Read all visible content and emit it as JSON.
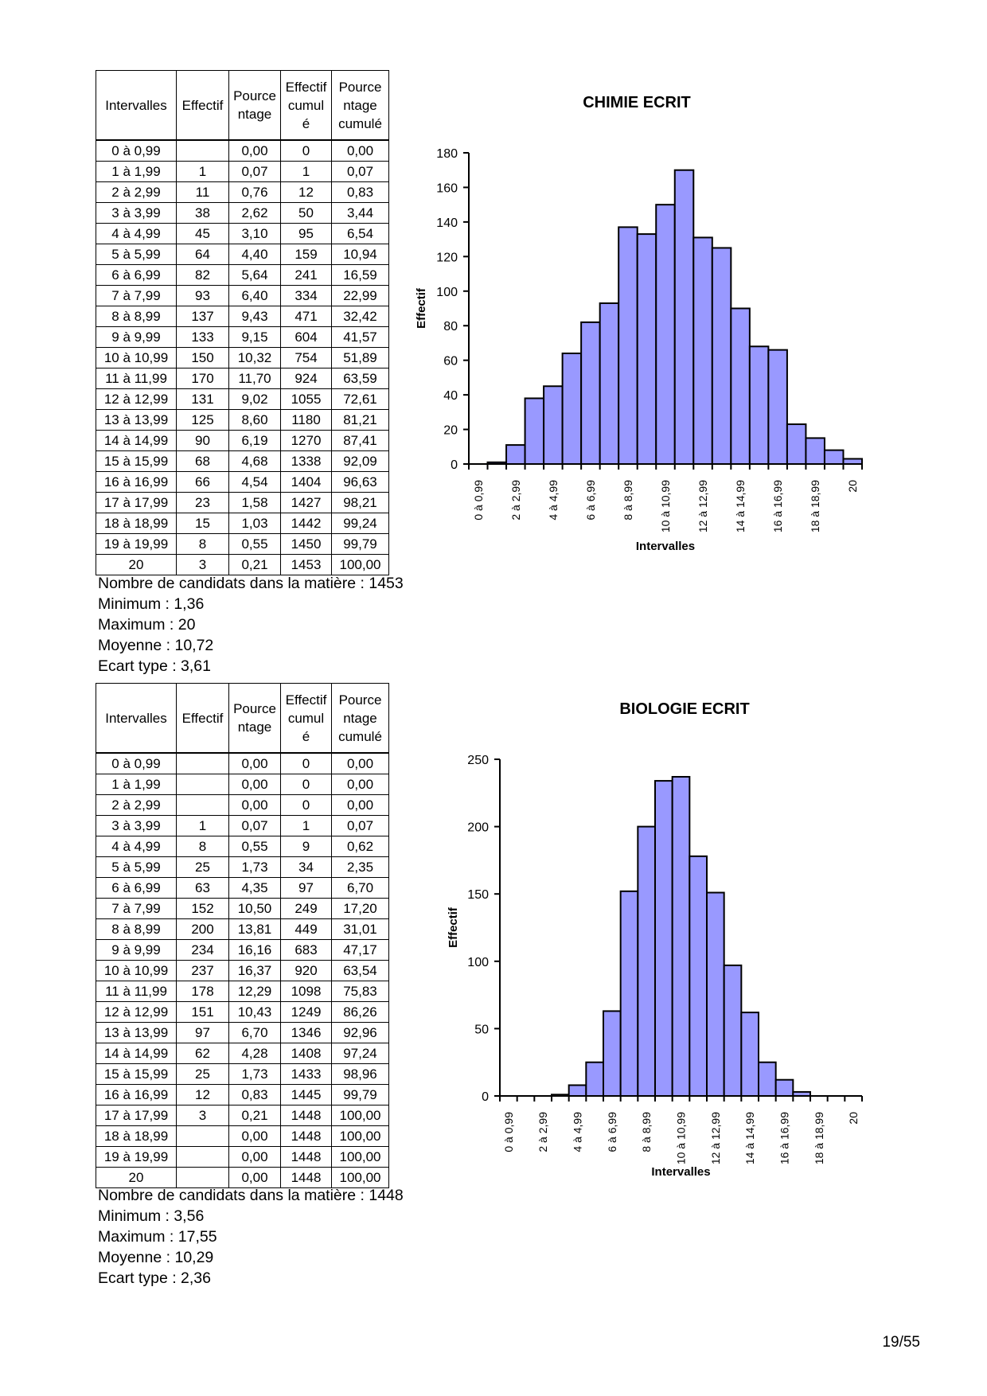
{
  "table_headers": {
    "interval": "Intervalles",
    "count": "Effectif",
    "percent": [
      "Pource",
      "ntage"
    ],
    "cum_count": [
      "Effectif",
      "cumul",
      "é"
    ],
    "cum_percent": [
      "Pource",
      "ntage",
      "cumulé"
    ]
  },
  "sections": [
    {
      "rows": [
        [
          "0 à 0,99",
          "",
          "0,00",
          "0",
          "0,00"
        ],
        [
          "1 à 1,99",
          "1",
          "0,07",
          "1",
          "0,07"
        ],
        [
          "2 à 2,99",
          "11",
          "0,76",
          "12",
          "0,83"
        ],
        [
          "3 à 3,99",
          "38",
          "2,62",
          "50",
          "3,44"
        ],
        [
          "4 à 4,99",
          "45",
          "3,10",
          "95",
          "6,54"
        ],
        [
          "5 à 5,99",
          "64",
          "4,40",
          "159",
          "10,94"
        ],
        [
          "6 à 6,99",
          "82",
          "5,64",
          "241",
          "16,59"
        ],
        [
          "7 à 7,99",
          "93",
          "6,40",
          "334",
          "22,99"
        ],
        [
          "8 à 8,99",
          "137",
          "9,43",
          "471",
          "32,42"
        ],
        [
          "9 à 9,99",
          "133",
          "9,15",
          "604",
          "41,57"
        ],
        [
          "10 à 10,99",
          "150",
          "10,32",
          "754",
          "51,89"
        ],
        [
          "11 à 11,99",
          "170",
          "11,70",
          "924",
          "63,59"
        ],
        [
          "12 à 12,99",
          "131",
          "9,02",
          "1055",
          "72,61"
        ],
        [
          "13 à 13,99",
          "125",
          "8,60",
          "1180",
          "81,21"
        ],
        [
          "14 à 14,99",
          "90",
          "6,19",
          "1270",
          "87,41"
        ],
        [
          "15 à 15,99",
          "68",
          "4,68",
          "1338",
          "92,09"
        ],
        [
          "16 à 16,99",
          "66",
          "4,54",
          "1404",
          "96,63"
        ],
        [
          "17 à 17,99",
          "23",
          "1,58",
          "1427",
          "98,21"
        ],
        [
          "18 à 18,99",
          "15",
          "1,03",
          "1442",
          "99,24"
        ],
        [
          "19 à 19,99",
          "8",
          "0,55",
          "1450",
          "99,79"
        ],
        [
          "20",
          "3",
          "0,21",
          "1453",
          "100,00"
        ]
      ],
      "summary": [
        "Nombre de candidats dans la matière : 1453",
        "Minimum : 1,36",
        "Maximum : 20",
        "Moyenne : 10,72",
        "Ecart type : 3,61"
      ]
    },
    {
      "rows": [
        [
          "0 à 0,99",
          "",
          "0,00",
          "0",
          "0,00"
        ],
        [
          "1 à 1,99",
          "",
          "0,00",
          "0",
          "0,00"
        ],
        [
          "2 à 2,99",
          "",
          "0,00",
          "0",
          "0,00"
        ],
        [
          "3 à 3,99",
          "1",
          "0,07",
          "1",
          "0,07"
        ],
        [
          "4 à 4,99",
          "8",
          "0,55",
          "9",
          "0,62"
        ],
        [
          "5 à 5,99",
          "25",
          "1,73",
          "34",
          "2,35"
        ],
        [
          "6 à 6,99",
          "63",
          "4,35",
          "97",
          "6,70"
        ],
        [
          "7 à 7,99",
          "152",
          "10,50",
          "249",
          "17,20"
        ],
        [
          "8 à 8,99",
          "200",
          "13,81",
          "449",
          "31,01"
        ],
        [
          "9 à 9,99",
          "234",
          "16,16",
          "683",
          "47,17"
        ],
        [
          "10 à 10,99",
          "237",
          "16,37",
          "920",
          "63,54"
        ],
        [
          "11 à 11,99",
          "178",
          "12,29",
          "1098",
          "75,83"
        ],
        [
          "12 à 12,99",
          "151",
          "10,43",
          "1249",
          "86,26"
        ],
        [
          "13 à 13,99",
          "97",
          "6,70",
          "1346",
          "92,96"
        ],
        [
          "14 à 14,99",
          "62",
          "4,28",
          "1408",
          "97,24"
        ],
        [
          "15 à 15,99",
          "25",
          "1,73",
          "1433",
          "98,96"
        ],
        [
          "16 à 16,99",
          "12",
          "0,83",
          "1445",
          "99,79"
        ],
        [
          "17 à 17,99",
          "3",
          "0,21",
          "1448",
          "100,00"
        ],
        [
          "18 à 18,99",
          "",
          "0,00",
          "1448",
          "100,00"
        ],
        [
          "19 à 19,99",
          "",
          "0,00",
          "1448",
          "100,00"
        ],
        [
          "20",
          "",
          "0,00",
          "1448",
          "100,00"
        ]
      ],
      "summary": [
        "Nombre de candidats dans la matière : 1448",
        "Minimum : 3,56",
        "Maximum : 17,55",
        "Moyenne : 10,29",
        "Ecart type : 2,36"
      ]
    }
  ],
  "chart_data": [
    {
      "type": "bar",
      "title": "CHIMIE ECRIT",
      "xlabel": "Intervalles",
      "ylabel": "Effectif",
      "ylim": [
        0,
        180
      ],
      "yticks": [
        0,
        20,
        40,
        60,
        80,
        100,
        120,
        140,
        160,
        180
      ],
      "categories": [
        "0 à 0,99",
        "1 à 1,99",
        "2 à 2,99",
        "3 à 3,99",
        "4 à 4,99",
        "5 à 5,99",
        "6 à 6,99",
        "7 à 7,99",
        "8 à 8,99",
        "9 à 9,99",
        "10 à 10,99",
        "11 à 11,99",
        "12 à 12,99",
        "13 à 13,99",
        "14 à 14,99",
        "15 à 15,99",
        "16 à 16,99",
        "17 à 17,99",
        "18 à 18,99",
        "19 à 19,99",
        "20"
      ],
      "tick_labels": [
        "0 à 0,99",
        "2 à 2,99",
        "4 à 4,99",
        "6 à 6,99",
        "8 à 8,99",
        "10 à 10,99",
        "12 à 12,99",
        "14 à 14,99",
        "16 à 16,99",
        "18 à 18,99",
        "20"
      ],
      "values": [
        0,
        1,
        11,
        38,
        45,
        64,
        82,
        93,
        137,
        133,
        150,
        170,
        131,
        125,
        90,
        68,
        66,
        23,
        15,
        8,
        3
      ],
      "bar_color": "#9999ff"
    },
    {
      "type": "bar",
      "title": "BIOLOGIE ECRIT",
      "xlabel": "Intervalles",
      "ylabel": "Effectif",
      "ylim": [
        0,
        250
      ],
      "yticks": [
        0,
        50,
        100,
        150,
        200,
        250
      ],
      "categories": [
        "0 à 0,99",
        "1 à 1,99",
        "2 à 2,99",
        "3 à 3,99",
        "4 à 4,99",
        "5 à 5,99",
        "6 à 6,99",
        "7 à 7,99",
        "8 à 8,99",
        "9 à 9,99",
        "10 à 10,99",
        "11 à 11,99",
        "12 à 12,99",
        "13 à 13,99",
        "14 à 14,99",
        "15 à 15,99",
        "16 à 16,99",
        "17 à 17,99",
        "18 à 18,99",
        "19 à 19,99",
        "20"
      ],
      "tick_labels": [
        "0 à 0,99",
        "2 à 2,99",
        "4 à 4,99",
        "6 à 6,99",
        "8 à 8,99",
        "10 à 10,99",
        "12 à 12,99",
        "14 à 14,99",
        "16 à 16,99",
        "18 à 18,99",
        "20"
      ],
      "values": [
        0,
        0,
        0,
        1,
        8,
        25,
        63,
        152,
        200,
        234,
        237,
        178,
        151,
        97,
        62,
        25,
        12,
        3,
        0,
        0,
        0
      ],
      "bar_color": "#9999ff"
    }
  ],
  "page_number": "19/55"
}
